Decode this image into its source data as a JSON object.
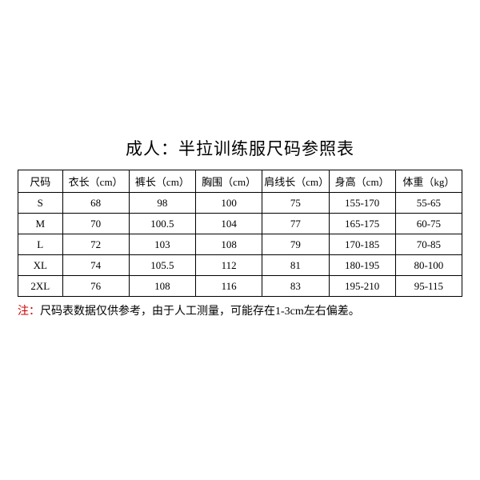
{
  "title": "成人：半拉训练服尺码参照表",
  "table": {
    "columns": [
      "尺码",
      "衣长（cm）",
      "裤长（cm）",
      "胸围（cm）",
      "肩线长（cm）",
      "身高（cm）",
      "体重（kg）"
    ],
    "rows": [
      [
        "S",
        "68",
        "98",
        "100",
        "75",
        "155-170",
        "55-65"
      ],
      [
        "M",
        "70",
        "100.5",
        "104",
        "77",
        "165-175",
        "60-75"
      ],
      [
        "L",
        "72",
        "103",
        "108",
        "79",
        "170-185",
        "70-85"
      ],
      [
        "XL",
        "74",
        "105.5",
        "112",
        "81",
        "180-195",
        "80-100"
      ],
      [
        "2XL",
        "76",
        "108",
        "116",
        "83",
        "195-210",
        "95-115"
      ]
    ]
  },
  "note": {
    "label": "注：",
    "text": "尺码表数据仅供参考，由于人工测量，可能存在1-3cm左右偏差。"
  },
  "style": {
    "background_color": "#ffffff",
    "border_color": "#000000",
    "text_color": "#000000",
    "note_label_color": "#cc0000",
    "title_fontsize": 21,
    "cell_fontsize": 13,
    "note_fontsize": 14
  }
}
